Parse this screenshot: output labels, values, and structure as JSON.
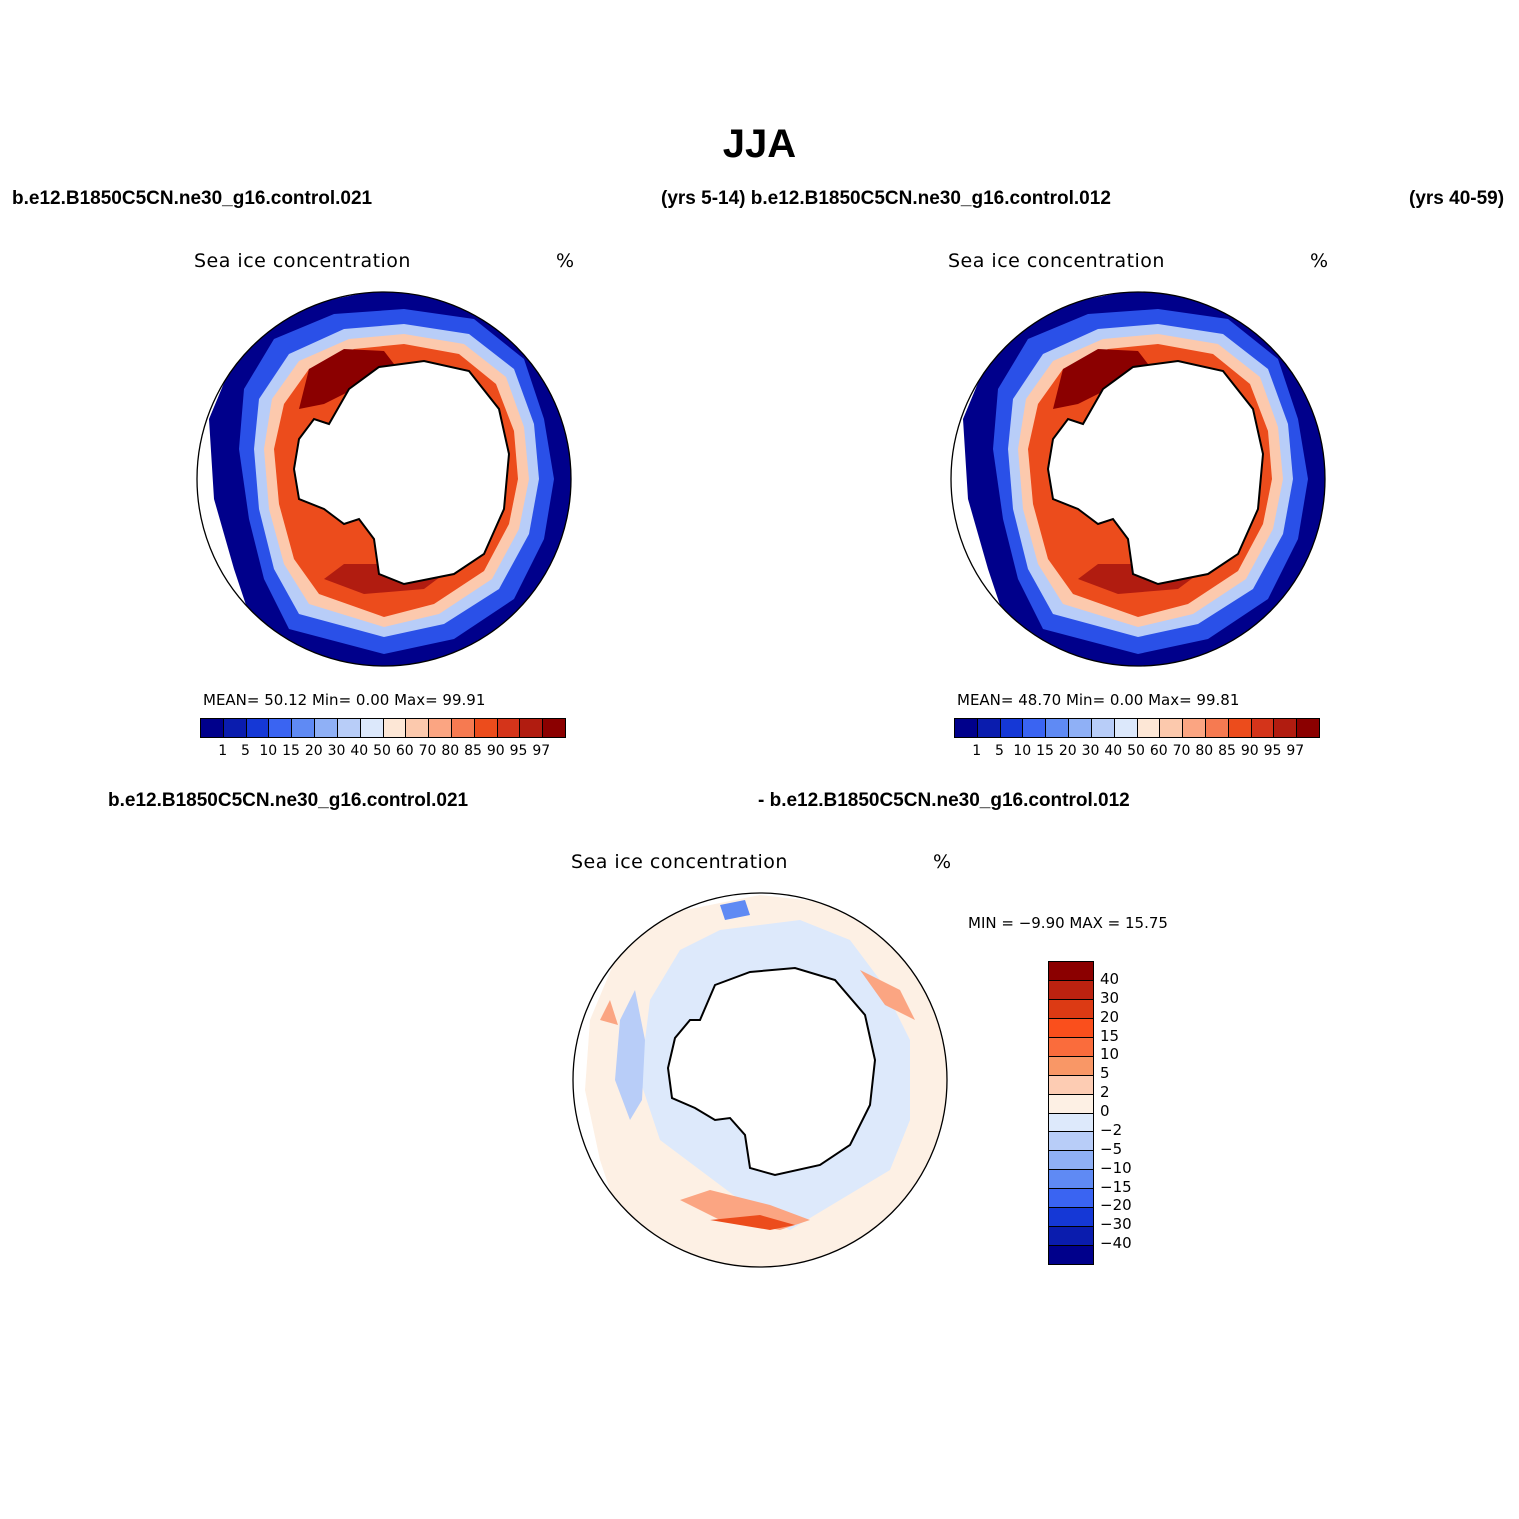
{
  "figure": {
    "title": "JJA",
    "top_left_label": "b.e12.B1850C5CN.ne30_g16.control.021",
    "top_middle_label": "(yrs 5-14) b.e12.B1850C5CN.ne30_g16.control.012",
    "top_right_label": "(yrs 40-59)",
    "bottom_left_label": "b.e12.B1850C5CN.ne30_g16.control.021",
    "bottom_right_label": "- b.e12.B1850C5CN.ne30_g16.control.012"
  },
  "panels": [
    {
      "variable": "Sea ice concentration",
      "units": "%",
      "stats": "MEAN=   50.12   Min=     0.00   Max=    99.91"
    },
    {
      "variable": "Sea ice concentration",
      "units": "%",
      "stats": "MEAN=   48.70   Min=     0.00   Max=    99.81"
    },
    {
      "variable": "Sea ice concentration",
      "units": "%",
      "stats": "MIN =   −9.90  MAX =    15.75"
    }
  ],
  "colorbar_abs": {
    "colors": [
      "#00008b",
      "#0a1cae",
      "#1538d6",
      "#3a64f2",
      "#5f8af4",
      "#8fb0f6",
      "#b8cdf8",
      "#dce8fb",
      "#fde7d6",
      "#fcc9ad",
      "#fba582",
      "#f67a51",
      "#ec4c1c",
      "#d4341a",
      "#b11c10",
      "#8b0000"
    ],
    "labels": [
      "1",
      "5",
      "10",
      "15",
      "20",
      "30",
      "40",
      "50",
      "60",
      "70",
      "80",
      "85",
      "90",
      "95",
      "97"
    ]
  },
  "colorbar_diff": {
    "colors": [
      "#8b0000",
      "#bb2210",
      "#dc3a14",
      "#fa4f1c",
      "#fa6c3c",
      "#f99766",
      "#fdccb3",
      "#fdf0e4",
      "#dde9fb",
      "#b8cdf8",
      "#8fb0f6",
      "#5f8af4",
      "#3a64f2",
      "#1538d6",
      "#0a1cae",
      "#00008b"
    ],
    "labels": [
      "40",
      "30",
      "20",
      "15",
      "10",
      "5",
      "2",
      "0",
      "−2",
      "−5",
      "−10",
      "−15",
      "−20",
      "−30",
      "−40"
    ]
  }
}
